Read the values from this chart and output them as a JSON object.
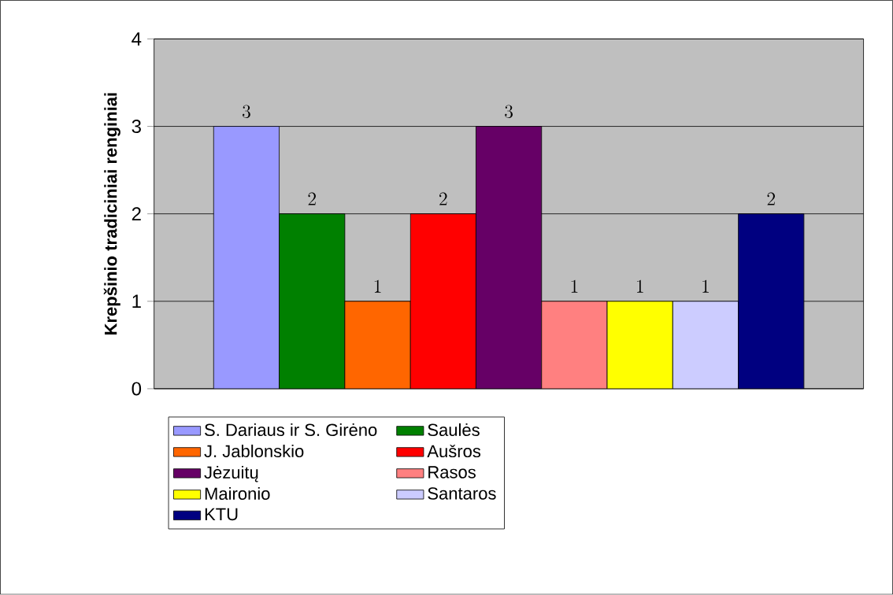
{
  "chart_data": {
    "type": "bar",
    "ylabel": "Krepšinio tradiciniai renginiai",
    "categories": [
      null
    ],
    "ylim": [
      0,
      4
    ],
    "yticks": [
      0,
      1,
      2,
      3,
      4
    ],
    "grid": "y",
    "legend": "bottom",
    "data_labels": true,
    "series": [
      {
        "name": "S. Dariaus ir S. Girėno",
        "color": "#9999ff",
        "values": [
          3
        ]
      },
      {
        "name": "Saulės",
        "color": "#008000",
        "values": [
          2
        ]
      },
      {
        "name": "J. Jablonskio",
        "color": "#ff6600",
        "values": [
          1
        ]
      },
      {
        "name": "Aušros",
        "color": "#ff0000",
        "values": [
          2
        ]
      },
      {
        "name": "Jėzuitų",
        "color": "#660066",
        "values": [
          3
        ]
      },
      {
        "name": "Rasos",
        "color": "#ff8080",
        "values": [
          1
        ]
      },
      {
        "name": "Maironio",
        "color": "#ffff00",
        "values": [
          1
        ]
      },
      {
        "name": "Santaros",
        "color": "#ccccff",
        "values": [
          1
        ]
      },
      {
        "name": "KTU",
        "color": "#000080",
        "values": [
          2
        ]
      }
    ]
  }
}
